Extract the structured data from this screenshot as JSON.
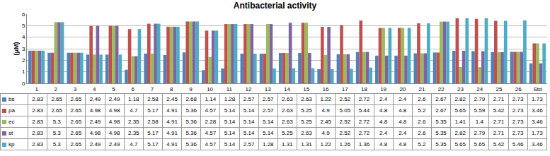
{
  "chart_data": {
    "type": "bar",
    "title": "Antibacterial activity",
    "y_label": "(μM)",
    "categories": [
      "1",
      "2",
      "3",
      "4",
      "5",
      "6",
      "7",
      "8",
      "9",
      "10",
      "11",
      "12",
      "13",
      "14",
      "15",
      "16",
      "17",
      "18",
      "19",
      "20",
      "21",
      "22",
      "23",
      "24",
      "25",
      "26",
      "Std"
    ],
    "series": [
      {
        "name": "bs",
        "color": "#4f81bd",
        "values": [
          2.83,
          2.65,
          2.65,
          2.49,
          2.49,
          1.18,
          2.58,
          2.45,
          2.68,
          1.14,
          1.28,
          2.57,
          2.57,
          2.63,
          2.63,
          1.22,
          2.52,
          2.72,
          2.4,
          2.4,
          2.6,
          2.67,
          2.82,
          2.79,
          2.71,
          2.73,
          1.73
        ]
      },
      {
        "name": "pa",
        "color": "#c0504d",
        "values": [
          2.83,
          2.65,
          2.65,
          4.98,
          4.98,
          4.7,
          5.17,
          4.91,
          5.36,
          4.57,
          5.14,
          5.14,
          2.57,
          2.63,
          5.25,
          4.9,
          5.05,
          5.44,
          4.8,
          4.8,
          5.2,
          2.67,
          5.65,
          5.59,
          5.42,
          2.73,
          3.46
        ]
      },
      {
        "name": "ec",
        "color": "#9bbb59",
        "values": [
          2.83,
          5.3,
          2.65,
          2.49,
          4.98,
          2.35,
          2.58,
          4.91,
          5.36,
          2.28,
          5.14,
          5.14,
          5.14,
          2.63,
          5.25,
          2.45,
          2.52,
          2.72,
          4.8,
          4.8,
          2.6,
          5.35,
          1.41,
          1.4,
          2.71,
          2.73,
          3.46
        ]
      },
      {
        "name": "st",
        "color": "#8064a2",
        "values": [
          2.83,
          5.3,
          2.65,
          4.98,
          4.98,
          2.35,
          5.17,
          4.91,
          5.36,
          4.57,
          5.14,
          5.14,
          5.14,
          5.25,
          2.63,
          4.9,
          2.52,
          2.72,
          2.4,
          2.4,
          2.6,
          5.35,
          2.82,
          2.79,
          2.71,
          2.73,
          1.73
        ]
      },
      {
        "name": "kp",
        "color": "#4bacc6",
        "values": [
          2.83,
          5.3,
          2.65,
          2.49,
          2.49,
          4.7,
          5.17,
          4.91,
          5.36,
          4.57,
          5.14,
          2.57,
          1.28,
          1.31,
          1.31,
          1.22,
          1.26,
          1.36,
          4.8,
          4.8,
          5.2,
          5.35,
          5.65,
          5.65,
          5.42,
          5.46,
          3.46
        ]
      }
    ],
    "ylim": [
      0,
      6
    ],
    "yticks": [
      0,
      1,
      2,
      3,
      4,
      5,
      6
    ],
    "grid": true
  }
}
